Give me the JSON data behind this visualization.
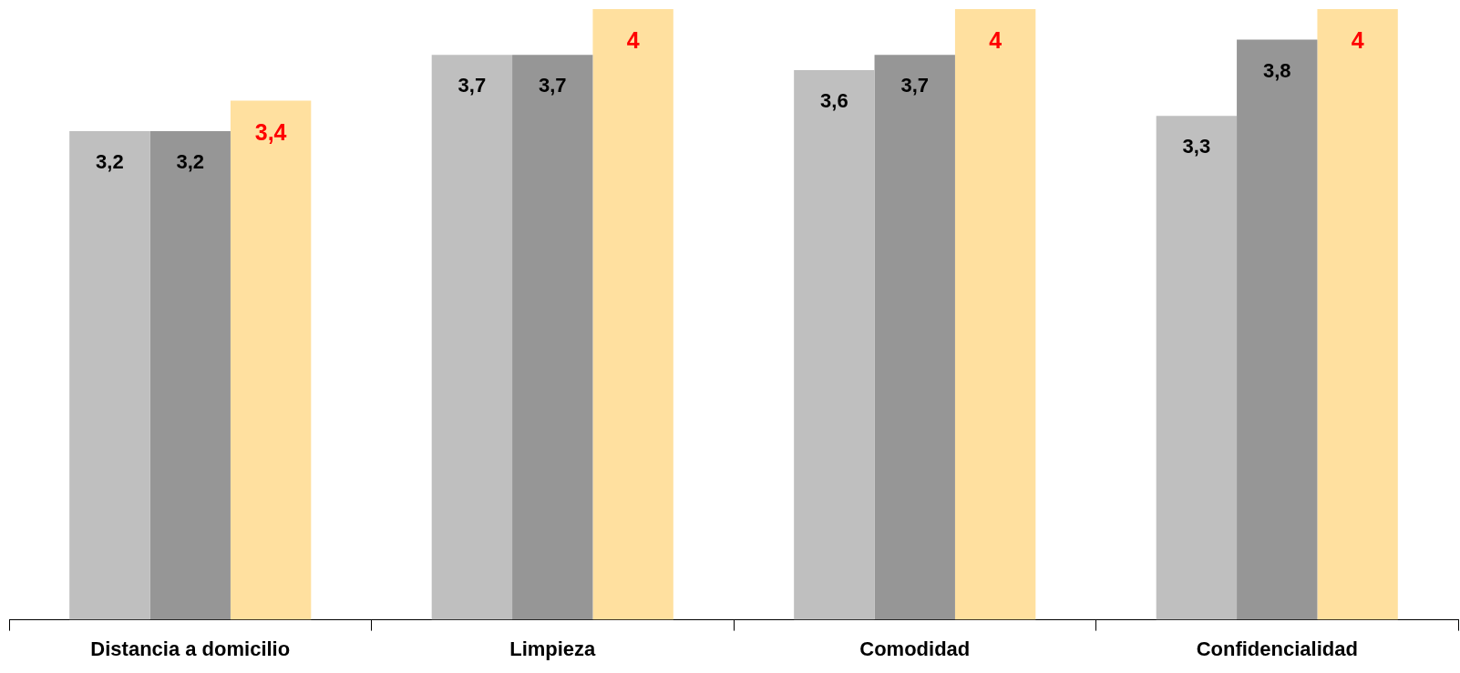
{
  "chart_data": {
    "type": "bar",
    "categories": [
      "Distancia a domicilio",
      "Limpieza",
      "Comodidad",
      "Confidencialidad"
    ],
    "series": [
      {
        "color": "#bfbfbf",
        "values": [
          3.2,
          3.7,
          3.6,
          3.3
        ],
        "value_labels": [
          "3,2",
          "3,7",
          "3,6",
          "3,3"
        ]
      },
      {
        "color": "#969696",
        "values": [
          3.2,
          3.7,
          3.7,
          3.8
        ],
        "value_labels": [
          "3,2",
          "3,7",
          "3,7",
          "3,8"
        ]
      },
      {
        "color": "#ffe09f",
        "values": [
          3.4,
          4,
          4,
          4
        ],
        "value_labels": [
          "3,4",
          "4",
          "4",
          "4"
        ]
      }
    ],
    "ylim": [
      0,
      4
    ]
  }
}
